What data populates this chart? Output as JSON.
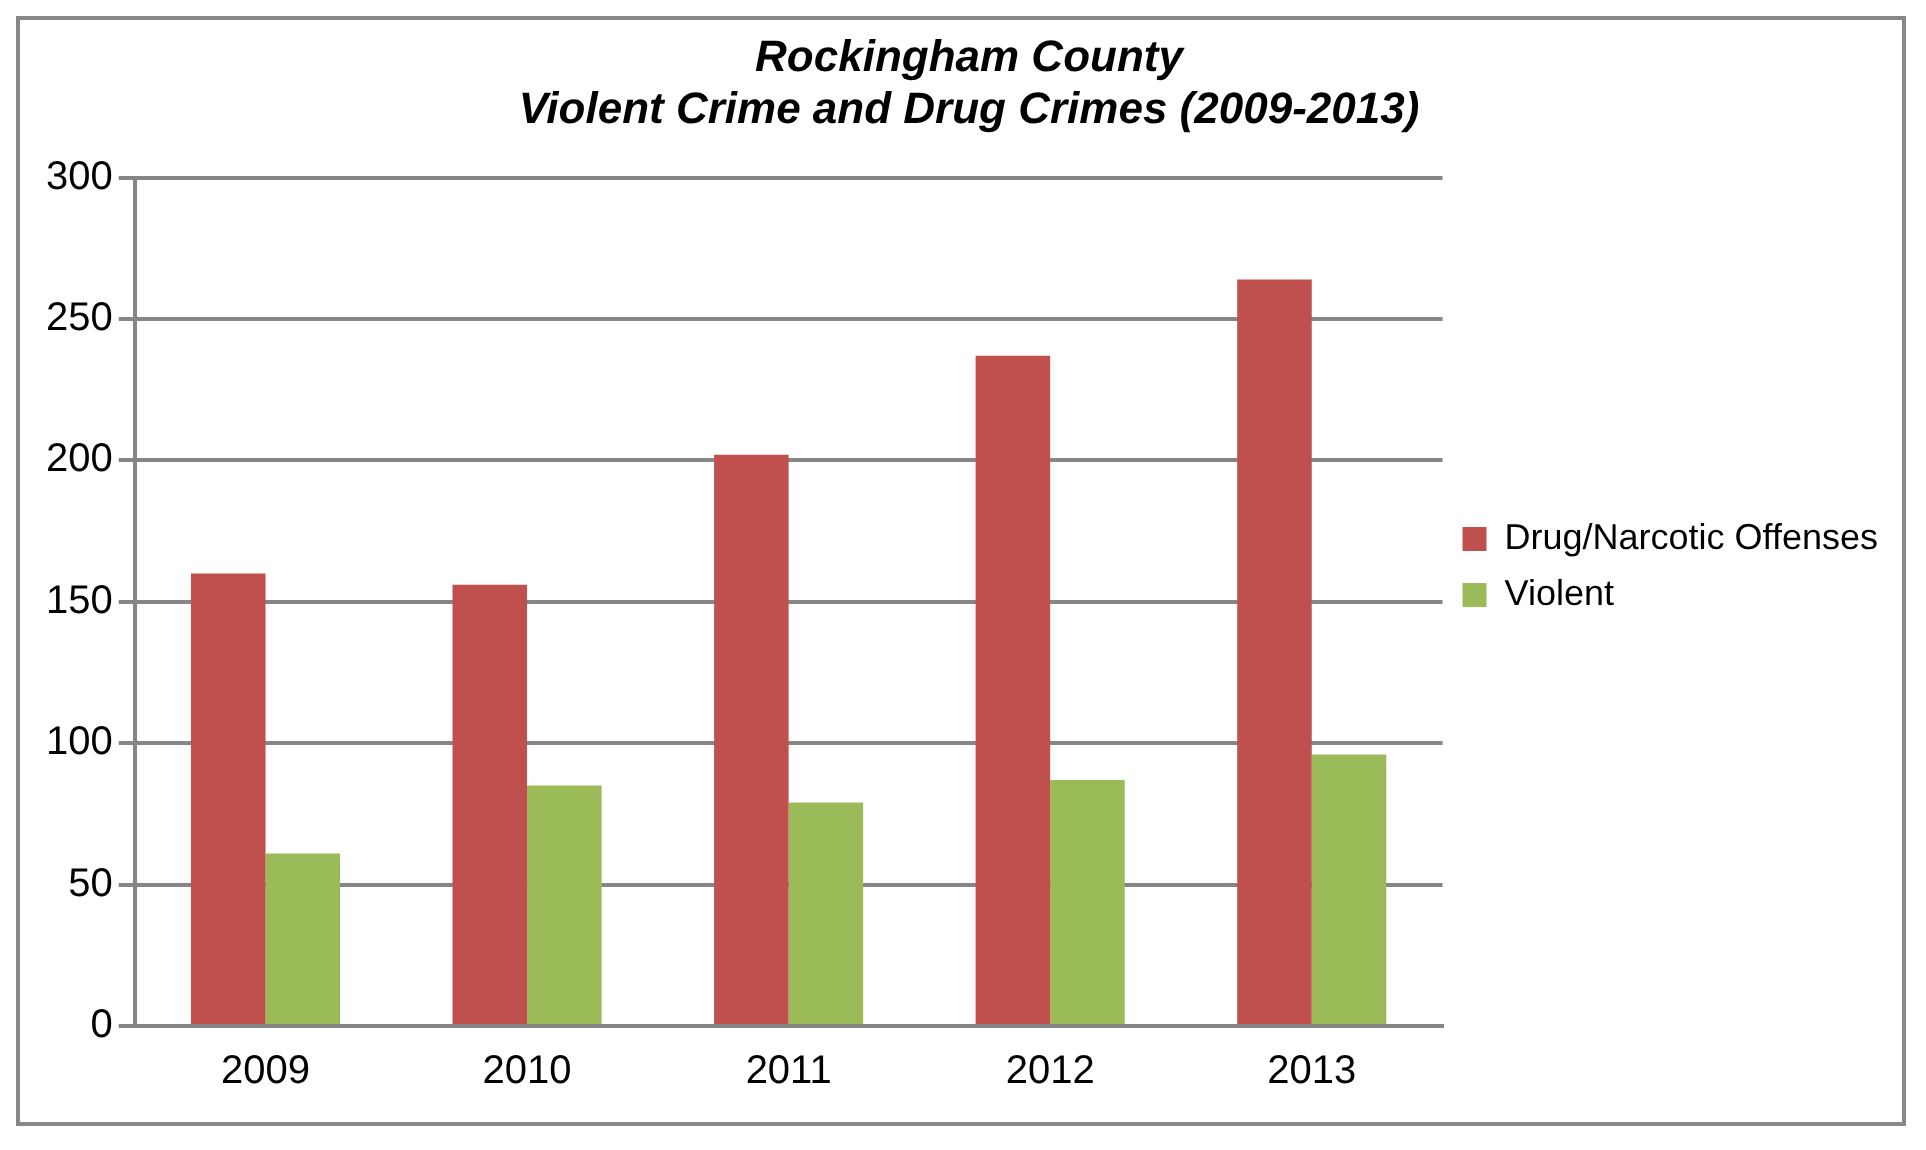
{
  "chart_data": {
    "type": "bar",
    "title": "Rockingham County\nViolent Crime and Drug Crimes (2009-2013)",
    "categories": [
      "2009",
      "2010",
      "2011",
      "2012",
      "2013"
    ],
    "series": [
      {
        "name": "Drug/Narcotic Offenses",
        "color": "#c0504d",
        "values": [
          160,
          156,
          202,
          237,
          264
        ]
      },
      {
        "name": "Violent",
        "color": "#9bbb59",
        "values": [
          61,
          85,
          79,
          87,
          96
        ]
      }
    ],
    "ylim": [
      0,
      300
    ],
    "yticks": [
      0,
      50,
      100,
      150,
      200,
      250,
      300
    ],
    "grid": "y",
    "legend": "right"
  }
}
